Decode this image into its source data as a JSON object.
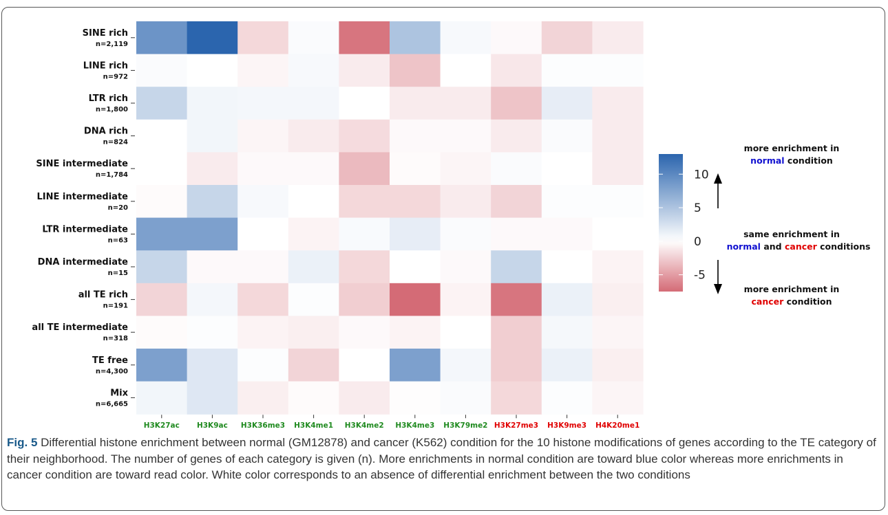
{
  "chart_data": {
    "type": "heatmap",
    "columns": [
      "H3K27ac",
      "H3K9ac",
      "H3K36me3",
      "H3K4me1",
      "H3K4me2",
      "H3K4me3",
      "H3K79me2",
      "H3K27me3",
      "H3K9me3",
      "H4K20me1"
    ],
    "column_colors": [
      "#1f8a1f",
      "#1f8a1f",
      "#1f8a1f",
      "#1f8a1f",
      "#1f8a1f",
      "#1f8a1f",
      "#1f8a1f",
      "#e00000",
      "#e00000",
      "#e00000"
    ],
    "rows": [
      {
        "name": "SINE rich",
        "n": "n=2,119"
      },
      {
        "name": "LINE rich",
        "n": "n=972"
      },
      {
        "name": "LTR rich",
        "n": "n=1,800"
      },
      {
        "name": "DNA rich",
        "n": "n=824"
      },
      {
        "name": "SINE intermediate",
        "n": "n=1,784"
      },
      {
        "name": "LINE intermediate",
        "n": "n=20"
      },
      {
        "name": "LTR intermediate",
        "n": "n=63"
      },
      {
        "name": "DNA intermediate",
        "n": "n=15"
      },
      {
        "name": "all TE rich",
        "n": "n=191"
      },
      {
        "name": "all TE intermediate",
        "n": "n=318"
      },
      {
        "name": "TE free",
        "n": "n=4,300"
      },
      {
        "name": "Mix",
        "n": "n=6,665"
      }
    ],
    "values": [
      [
        9,
        13,
        -2,
        0.3,
        -7,
        5,
        0.5,
        -0.3,
        -2.2,
        -1
      ],
      [
        0.3,
        0,
        -0.5,
        0.5,
        -1,
        -3,
        0,
        -1.2,
        0.2,
        0.2
      ],
      [
        3.5,
        0.8,
        0.7,
        0.7,
        0,
        -1,
        -1,
        -3,
        1.5,
        -1
      ],
      [
        0,
        0.8,
        -0.5,
        -1,
        -1.8,
        -0.3,
        -0.3,
        -1,
        0.3,
        -1
      ],
      [
        0,
        -1,
        -0.3,
        -0.3,
        -3.5,
        -0.2,
        -0.5,
        0.3,
        0,
        -1
      ],
      [
        -0.2,
        3.5,
        0.5,
        0,
        -2,
        -2,
        -1,
        -2.2,
        0.2,
        0.2
      ],
      [
        8,
        8,
        0,
        -0.6,
        0.4,
        1.5,
        0.3,
        -0.3,
        -0.3,
        0
      ],
      [
        3.5,
        -0.3,
        -0.3,
        1.2,
        -2,
        0,
        -0.3,
        3.5,
        0,
        -0.6
      ],
      [
        -2.2,
        0.7,
        -2,
        0.2,
        -2.5,
        -7.5,
        -0.6,
        -7,
        1.2,
        -0.8
      ],
      [
        -0.2,
        0.2,
        -0.6,
        -0.8,
        -0.3,
        -0.6,
        0,
        -2.5,
        0.6,
        -0.5
      ],
      [
        8,
        2,
        0.2,
        -2.2,
        0,
        8,
        0.7,
        -2.5,
        1.2,
        -0.8
      ],
      [
        0.8,
        2,
        -0.8,
        -0.2,
        -1,
        -0.1,
        0.3,
        -2,
        0.2,
        -0.5
      ]
    ],
    "scale": {
      "min": -7.5,
      "max": 13,
      "low_color": "#d46b76",
      "mid_color": "#ffffff",
      "high_color": "#2b65ae"
    },
    "legend_ticks": [
      {
        "value": 10,
        "label": "10"
      },
      {
        "value": 5,
        "label": "5"
      },
      {
        "value": 0,
        "label": "0"
      },
      {
        "value": -5,
        "label": "-5"
      }
    ]
  },
  "annotations": {
    "top": {
      "line1": "more enrichment in",
      "word": "normal",
      "rest": " condition"
    },
    "middle": {
      "line1": "same enrichment in",
      "normal": "normal",
      "and": " and ",
      "cancer": "cancer",
      "rest": " conditions"
    },
    "bottom": {
      "line1": "more enrichment in",
      "word": "cancer",
      "rest": " condition"
    },
    "normal_color": "#1010d0",
    "cancer_color": "#e00000"
  },
  "caption": {
    "label": "Fig. 5",
    "text": " Differential histone enrichment between normal (GM12878) and cancer (K562) condition for the 10 histone modifications of genes according to the TE category of their neighborhood. The number of genes of each category is given (n). More enrichments in normal condition are toward blue color whereas more enrichments in cancer condition are toward read color. White color corresponds to an absence of differential enrichment between the two conditions"
  }
}
